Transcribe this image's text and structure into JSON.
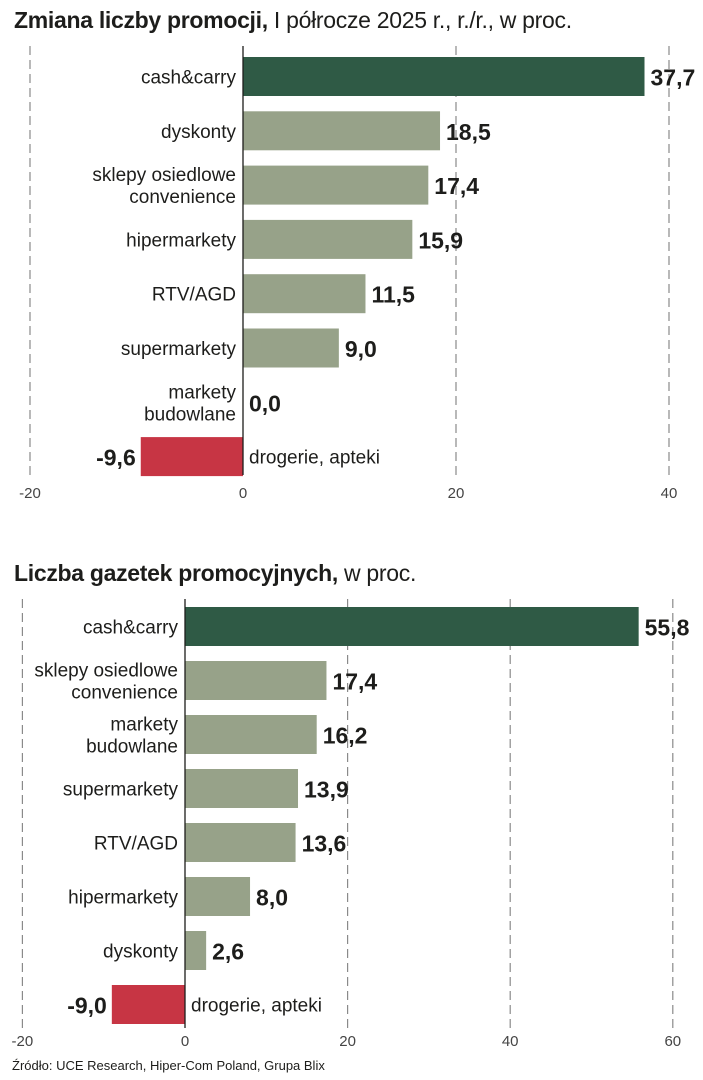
{
  "chart_data": [
    {
      "type": "bar",
      "orientation": "horizontal",
      "title": "Zmiana liczby promocji,",
      "subtitle": "I półrocze 2025 r., r./r., w proc.",
      "categories": [
        "cash&carry",
        "dyskonty",
        "sklepy osiedlowe convenience",
        "hipermarkety",
        "RTV/AGD",
        "supermarkety",
        "markety budowlane",
        "drogerie, apteki"
      ],
      "values": [
        37.7,
        18.5,
        17.4,
        15.9,
        11.5,
        9.0,
        0.0,
        -9.6
      ],
      "value_labels": [
        "37,7",
        "18,5",
        "17,4",
        "15,9",
        "11,5",
        "9,0",
        "0,0",
        "-9,6"
      ],
      "xlim": [
        -20,
        40
      ],
      "xticks": [
        -20,
        0,
        20,
        40
      ],
      "grid": "vertical dashed",
      "colors": {
        "highlight": "#2f5a45",
        "positive": "#97a289",
        "negative": "#c73544"
      }
    },
    {
      "type": "bar",
      "orientation": "horizontal",
      "title": "Liczba gazetek promocyjnych,",
      "subtitle": "w proc.",
      "categories": [
        "cash&carry",
        "sklepy osiedlowe convenience",
        "markety budowlane",
        "supermarkety",
        "RTV/AGD",
        "hipermarkety",
        "dyskonty",
        "drogerie, apteki"
      ],
      "values": [
        55.8,
        17.4,
        16.2,
        13.9,
        13.6,
        8.0,
        2.6,
        -9.0
      ],
      "value_labels": [
        "55,8",
        "17,4",
        "16,2",
        "13,9",
        "13,6",
        "8,0",
        "2,6",
        "-9,0"
      ],
      "xlim": [
        -20,
        60
      ],
      "xticks": [
        -20,
        0,
        20,
        40,
        60
      ],
      "grid": "vertical dashed",
      "colors": {
        "highlight": "#2f5a45",
        "positive": "#97a289",
        "negative": "#c73544"
      }
    }
  ],
  "source": "Źródło: UCE Research, Hiper-Com Poland, Grupa Blix"
}
